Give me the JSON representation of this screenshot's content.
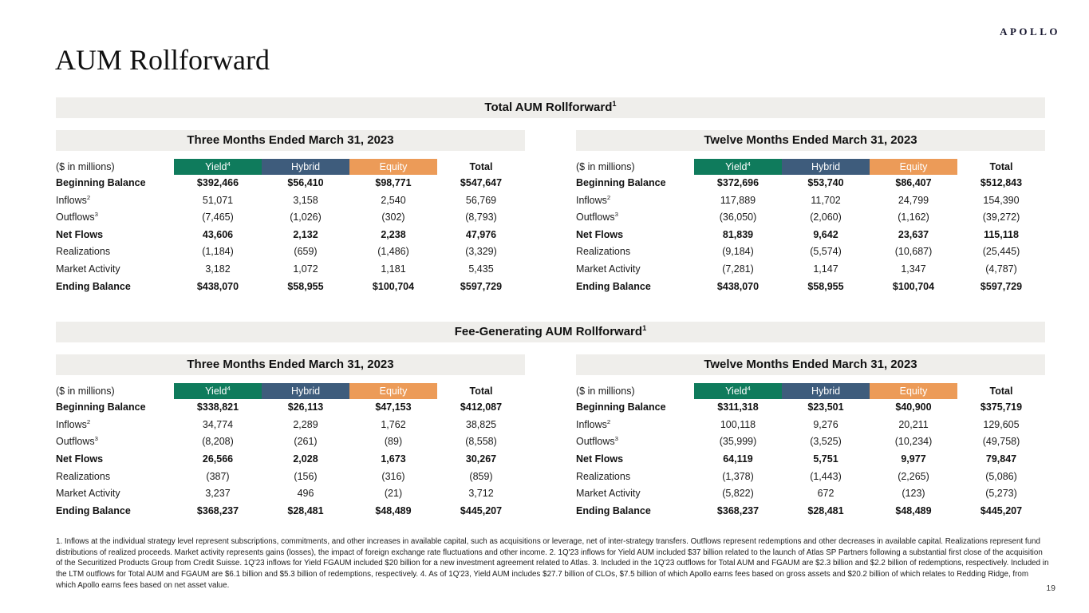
{
  "brand": {
    "logo": "APOLLO"
  },
  "page": {
    "title": "AUM Rollforward",
    "page_number": "19"
  },
  "colors": {
    "yield": "#0f7b5c",
    "hybrid": "#3e5c7c",
    "equity": "#ec9b58",
    "bar_bg": "#efeeeb"
  },
  "columns": [
    {
      "label": "Yield",
      "sup": "4",
      "color_key": "yield"
    },
    {
      "label": "Hybrid",
      "sup": "",
      "color_key": "hybrid"
    },
    {
      "label": "Equity",
      "sup": "",
      "color_key": "equity"
    },
    {
      "label": "Total",
      "sup": "",
      "color_key": ""
    }
  ],
  "sections": [
    {
      "title": "Total AUM Rollforward",
      "title_sup": "1",
      "tables": [
        {
          "period": "Three Months Ended March 31, 2023",
          "unit_label": "($ in millions)",
          "rows": [
            {
              "label": "Beginning Balance",
              "sup": "",
              "bold": true,
              "values": [
                "$392,466",
                "$56,410",
                "$98,771",
                "$547,647"
              ]
            },
            {
              "label": "Inflows",
              "sup": "2",
              "bold": false,
              "values": [
                "51,071",
                "3,158",
                "2,540",
                "56,769"
              ]
            },
            {
              "label": "Outflows",
              "sup": "3",
              "bold": false,
              "values": [
                "(7,465)",
                "(1,026)",
                "(302)",
                "(8,793)"
              ]
            },
            {
              "label": "Net Flows",
              "sup": "",
              "bold": true,
              "values": [
                "43,606",
                "2,132",
                "2,238",
                "47,976"
              ]
            },
            {
              "label": "Realizations",
              "sup": "",
              "bold": false,
              "values": [
                "(1,184)",
                "(659)",
                "(1,486)",
                "(3,329)"
              ]
            },
            {
              "label": "Market Activity",
              "sup": "",
              "bold": false,
              "values": [
                "3,182",
                "1,072",
                "1,181",
                "5,435"
              ]
            },
            {
              "label": "Ending Balance",
              "sup": "",
              "bold": true,
              "values": [
                "$438,070",
                "$58,955",
                "$100,704",
                "$597,729"
              ]
            }
          ]
        },
        {
          "period": "Twelve Months Ended March 31, 2023",
          "unit_label": "($ in millions)",
          "rows": [
            {
              "label": "Beginning Balance",
              "sup": "",
              "bold": true,
              "values": [
                "$372,696",
                "$53,740",
                "$86,407",
                "$512,843"
              ]
            },
            {
              "label": "Inflows",
              "sup": "2",
              "bold": false,
              "values": [
                "117,889",
                "11,702",
                "24,799",
                "154,390"
              ]
            },
            {
              "label": "Outflows",
              "sup": "3",
              "bold": false,
              "values": [
                "(36,050)",
                "(2,060)",
                "(1,162)",
                "(39,272)"
              ]
            },
            {
              "label": "Net Flows",
              "sup": "",
              "bold": true,
              "values": [
                "81,839",
                "9,642",
                "23,637",
                "115,118"
              ]
            },
            {
              "label": "Realizations",
              "sup": "",
              "bold": false,
              "values": [
                "(9,184)",
                "(5,574)",
                "(10,687)",
                "(25,445)"
              ]
            },
            {
              "label": "Market Activity",
              "sup": "",
              "bold": false,
              "values": [
                "(7,281)",
                "1,147",
                "1,347",
                "(4,787)"
              ]
            },
            {
              "label": "Ending Balance",
              "sup": "",
              "bold": true,
              "values": [
                "$438,070",
                "$58,955",
                "$100,704",
                "$597,729"
              ]
            }
          ]
        }
      ]
    },
    {
      "title": "Fee-Generating AUM Rollforward",
      "title_sup": "1",
      "tables": [
        {
          "period": "Three Months Ended March 31, 2023",
          "unit_label": "($ in millions)",
          "rows": [
            {
              "label": "Beginning Balance",
              "sup": "",
              "bold": true,
              "values": [
                "$338,821",
                "$26,113",
                "$47,153",
                "$412,087"
              ]
            },
            {
              "label": "Inflows",
              "sup": "2",
              "bold": false,
              "values": [
                "34,774",
                "2,289",
                "1,762",
                "38,825"
              ]
            },
            {
              "label": "Outflows",
              "sup": "3",
              "bold": false,
              "values": [
                "(8,208)",
                "(261)",
                "(89)",
                "(8,558)"
              ]
            },
            {
              "label": "Net Flows",
              "sup": "",
              "bold": true,
              "values": [
                "26,566",
                "2,028",
                "1,673",
                "30,267"
              ]
            },
            {
              "label": "Realizations",
              "sup": "",
              "bold": false,
              "values": [
                "(387)",
                "(156)",
                "(316)",
                "(859)"
              ]
            },
            {
              "label": "Market Activity",
              "sup": "",
              "bold": false,
              "values": [
                "3,237",
                "496",
                "(21)",
                "3,712"
              ]
            },
            {
              "label": "Ending Balance",
              "sup": "",
              "bold": true,
              "values": [
                "$368,237",
                "$28,481",
                "$48,489",
                "$445,207"
              ]
            }
          ]
        },
        {
          "period": "Twelve Months Ended March 31, 2023",
          "unit_label": "($ in millions)",
          "rows": [
            {
              "label": "Beginning Balance",
              "sup": "",
              "bold": true,
              "values": [
                "$311,318",
                "$23,501",
                "$40,900",
                "$375,719"
              ]
            },
            {
              "label": "Inflows",
              "sup": "2",
              "bold": false,
              "values": [
                "100,118",
                "9,276",
                "20,211",
                "129,605"
              ]
            },
            {
              "label": "Outflows",
              "sup": "3",
              "bold": false,
              "values": [
                "(35,999)",
                "(3,525)",
                "(10,234)",
                "(49,758)"
              ]
            },
            {
              "label": "Net Flows",
              "sup": "",
              "bold": true,
              "values": [
                "64,119",
                "5,751",
                "9,977",
                "79,847"
              ]
            },
            {
              "label": "Realizations",
              "sup": "",
              "bold": false,
              "values": [
                "(1,378)",
                "(1,443)",
                "(2,265)",
                "(5,086)"
              ]
            },
            {
              "label": "Market Activity",
              "sup": "",
              "bold": false,
              "values": [
                "(5,822)",
                "672",
                "(123)",
                "(5,273)"
              ]
            },
            {
              "label": "Ending Balance",
              "sup": "",
              "bold": true,
              "values": [
                "$368,237",
                "$28,481",
                "$48,489",
                "$445,207"
              ]
            }
          ]
        }
      ]
    }
  ],
  "footnotes": "1. Inflows at the individual strategy level represent subscriptions, commitments, and other increases in available capital, such as acquisitions or leverage, net of inter-strategy transfers. Outflows represent redemptions and other decreases in available capital. Realizations represent fund distributions of realized proceeds. Market activity represents gains (losses), the impact of foreign exchange rate fluctuations and other income. 2. 1Q'23 inflows for Yield AUM included $37 billion related to the launch of Atlas SP Partners following a substantial first close of the acquisition of the Securitized Products Group from Credit Suisse. 1Q'23 inflows for Yield FGAUM included $20 billion for a new investment agreement related to Atlas. 3. Included in the 1Q'23 outflows for Total AUM and FGAUM are $2.3 billion and $2.2 billion of redemptions, respectively. Included in the LTM outflows for Total AUM and FGAUM are $6.1 billion and $5.3 billion of redemptions, respectively. 4. As of 1Q'23, Yield AUM includes $27.7 billion of CLOs, $7.5 billion of which Apollo earns fees based on gross assets and $20.2 billion of which relates to Redding Ridge, from which Apollo earns fees based on net asset value.",
  "page_number": "19"
}
